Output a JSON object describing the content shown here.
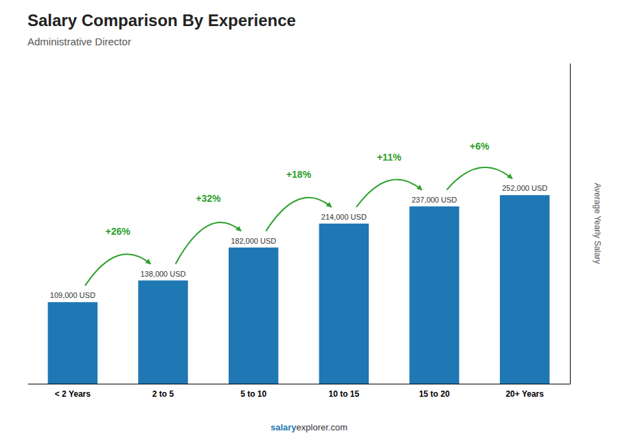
{
  "chart_data": {
    "type": "bar",
    "title": "Salary Comparison By Experience",
    "subtitle": "Administrative Director",
    "categories": [
      "< 2 Years",
      "2 to 5",
      "5 to 10",
      "10 to 15",
      "15 to 20",
      "20+ Years"
    ],
    "values": [
      109000,
      138000,
      182000,
      214000,
      237000,
      252000
    ],
    "value_labels": [
      "109,000 USD",
      "138,000 USD",
      "182,000 USD",
      "214,000 USD",
      "237,000 USD",
      "252,000 USD"
    ],
    "data_labels": true,
    "annotations": [
      "+26%",
      "+32%",
      "+18%",
      "+11%",
      "+6%"
    ],
    "y_label": "Average Yearly Salary",
    "footer": [
      "salary",
      "explorer.com"
    ],
    "ylim": [
      0,
      428400
    ],
    "yticks": [],
    "tick_labels": "x",
    "grid": false
  }
}
